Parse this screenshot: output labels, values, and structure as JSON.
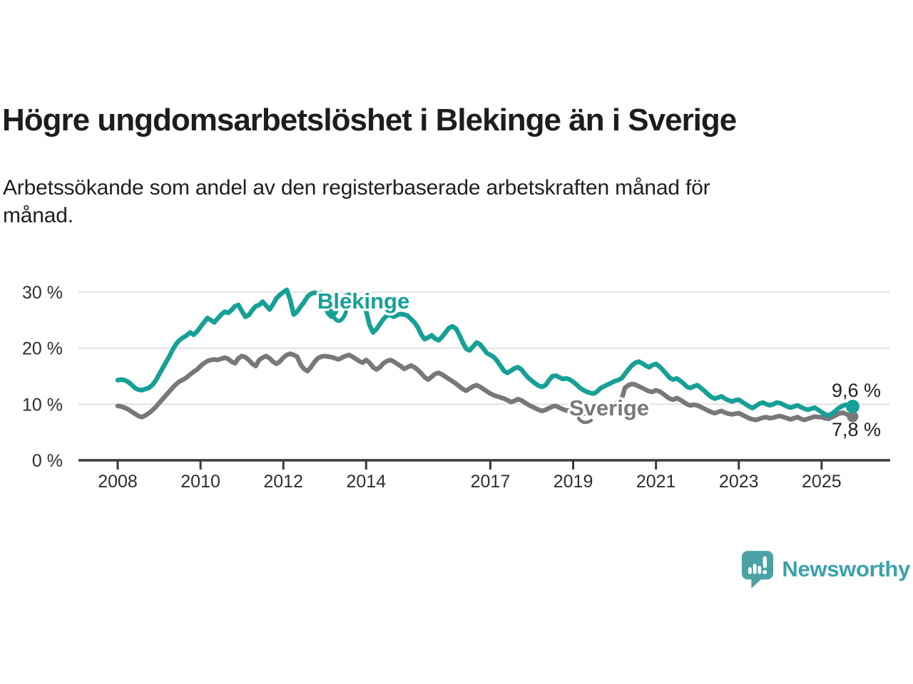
{
  "header": {
    "title": "Högre ungdomsarbetslöshet i Blekinge än i Sverige",
    "subtitle": "Arbetssökande som andel av den registerbaserade arbetskraften månad för\nmånad."
  },
  "chart_data": {
    "type": "line",
    "title": "Högre ungdomsarbetslöshet i Blekinge än i Sverige",
    "xlabel": "",
    "ylabel": "",
    "x_unit": "month",
    "x_start": "2008-01",
    "x_end": "2025-10",
    "x_tick_years": [
      2008,
      2010,
      2012,
      2014,
      2017,
      2019,
      2021,
      2023,
      2025
    ],
    "y_ticks": [
      {
        "value": 0,
        "label": "0 %"
      },
      {
        "value": 10,
        "label": "10 %"
      },
      {
        "value": 20,
        "label": "20 %"
      },
      {
        "value": 30,
        "label": "30 %"
      }
    ],
    "ylim": [
      0,
      32
    ],
    "grid": "horizontal",
    "legend_position": "inline-labels",
    "series": [
      {
        "name": "Blekinge",
        "color": "#16A096",
        "end_value": 9.6,
        "end_label": "9,6 %",
        "values": [
          14.3,
          14.4,
          14.3,
          14.0,
          13.5,
          12.9,
          12.6,
          12.5,
          12.7,
          12.9,
          13.4,
          14.2,
          15.3,
          16.4,
          17.5,
          18.6,
          19.8,
          20.8,
          21.5,
          21.9,
          22.3,
          22.8,
          22.4,
          23.0,
          23.8,
          24.6,
          25.4,
          25.0,
          24.6,
          25.3,
          26.0,
          26.5,
          26.3,
          26.8,
          27.5,
          27.7,
          26.6,
          25.6,
          25.9,
          26.8,
          27.5,
          27.7,
          28.3,
          27.6,
          26.9,
          27.8,
          28.9,
          29.5,
          30.0,
          30.4,
          28.6,
          26.0,
          26.5,
          27.4,
          28.2,
          29.2,
          29.7,
          29.9,
          29.8,
          29.9,
          27.5,
          26.2,
          25.6,
          26.3,
          27.5,
          28.6,
          29.3,
          29.5,
          29.3,
          28.9,
          28.3,
          27.4,
          26.6,
          24.1,
          22.8,
          23.4,
          24.3,
          25.2,
          25.8,
          25.9,
          25.6,
          25.9,
          26.1,
          26.0,
          25.8,
          25.2,
          24.6,
          23.7,
          22.4,
          21.6,
          21.9,
          22.3,
          21.7,
          21.4,
          22.0,
          22.8,
          23.6,
          23.9,
          23.5,
          22.4,
          21.0,
          19.9,
          19.6,
          20.3,
          21.0,
          20.7,
          19.9,
          19.1,
          18.8,
          18.4,
          17.7,
          16.8,
          15.9,
          15.6,
          16.0,
          16.4,
          16.6,
          16.2,
          15.4,
          14.7,
          14.2,
          13.7,
          13.3,
          13.1,
          13.4,
          14.3,
          15.0,
          15.1,
          14.8,
          14.5,
          14.6,
          14.4,
          14.0,
          13.5,
          12.9,
          12.5,
          12.2,
          12.0,
          11.9,
          12.3,
          12.9,
          13.2,
          13.5,
          13.8,
          14.1,
          14.3,
          14.6,
          15.4,
          16.2,
          16.9,
          17.4,
          17.6,
          17.3,
          16.9,
          16.6,
          17.0,
          17.2,
          16.7,
          16.1,
          15.4,
          14.7,
          14.4,
          14.6,
          14.2,
          13.7,
          13.1,
          12.9,
          13.2,
          13.4,
          12.9,
          12.4,
          11.8,
          11.3,
          11.0,
          11.2,
          11.4,
          11.0,
          10.7,
          10.5,
          10.7,
          10.8,
          10.4,
          10.0,
          9.6,
          9.3,
          9.7,
          10.1,
          10.3,
          10.0,
          9.8,
          10.0,
          10.3,
          10.2,
          9.9,
          9.6,
          9.4,
          9.6,
          9.8,
          9.5,
          9.2,
          9.0,
          9.2,
          9.4,
          9.0,
          8.6,
          8.2,
          8.0,
          8.3,
          8.8,
          9.3,
          9.7,
          9.9,
          9.7,
          9.6
        ]
      },
      {
        "name": "Sverige",
        "color": "#78787A",
        "end_value": 7.8,
        "end_label": "7,8 %",
        "values": [
          9.7,
          9.6,
          9.4,
          9.1,
          8.7,
          8.3,
          7.9,
          7.7,
          8.0,
          8.4,
          8.9,
          9.5,
          10.2,
          10.9,
          11.6,
          12.3,
          13.0,
          13.6,
          14.1,
          14.4,
          14.8,
          15.3,
          15.8,
          16.2,
          16.8,
          17.3,
          17.7,
          17.9,
          18.0,
          17.9,
          18.1,
          18.3,
          18.1,
          17.6,
          17.3,
          18.2,
          18.6,
          18.4,
          17.9,
          17.2,
          16.8,
          17.9,
          18.3,
          18.6,
          18.2,
          17.6,
          17.2,
          17.6,
          18.3,
          18.8,
          19.0,
          18.8,
          18.5,
          17.1,
          16.3,
          15.9,
          16.6,
          17.5,
          18.2,
          18.5,
          18.6,
          18.5,
          18.4,
          18.2,
          18.0,
          18.3,
          18.6,
          18.8,
          18.5,
          18.1,
          17.7,
          17.4,
          17.9,
          17.4,
          16.6,
          16.2,
          16.6,
          17.3,
          17.7,
          17.9,
          17.6,
          17.2,
          16.8,
          16.3,
          16.6,
          16.9,
          16.6,
          16.1,
          15.5,
          14.8,
          14.4,
          14.9,
          15.4,
          15.6,
          15.3,
          14.9,
          14.5,
          14.1,
          13.7,
          13.2,
          12.7,
          12.4,
          12.8,
          13.2,
          13.4,
          13.1,
          12.7,
          12.3,
          11.9,
          11.6,
          11.4,
          11.2,
          11.0,
          10.7,
          10.4,
          10.6,
          10.9,
          10.7,
          10.3,
          9.9,
          9.6,
          9.3,
          9.0,
          8.8,
          9.0,
          9.3,
          9.6,
          9.7,
          9.4,
          9.1,
          8.9,
          8.8,
          8.6,
          8.4,
          8.2,
          8.3,
          8.6,
          8.8,
          9.0,
          8.9,
          9.1,
          9.3,
          9.6,
          9.9,
          10.1,
          10.3,
          10.8,
          12.9,
          13.4,
          13.6,
          13.5,
          13.2,
          12.9,
          12.6,
          12.3,
          12.2,
          12.5,
          12.3,
          11.9,
          11.4,
          11.0,
          10.8,
          11.1,
          10.8,
          10.4,
          10.0,
          9.8,
          9.9,
          9.8,
          9.5,
          9.2,
          8.9,
          8.6,
          8.4,
          8.6,
          8.8,
          8.5,
          8.3,
          8.2,
          8.3,
          8.4,
          8.1,
          7.8,
          7.5,
          7.3,
          7.2,
          7.4,
          7.6,
          7.7,
          7.5,
          7.6,
          7.8,
          7.9,
          7.7,
          7.5,
          7.3,
          7.5,
          7.7,
          7.4,
          7.2,
          7.4,
          7.6,
          7.8,
          7.7,
          7.7,
          7.5,
          7.4,
          7.7,
          8.0,
          8.3,
          8.5,
          8.3,
          8.0,
          7.8
        ]
      }
    ]
  },
  "footer": {
    "brand": "Newsworthy"
  }
}
